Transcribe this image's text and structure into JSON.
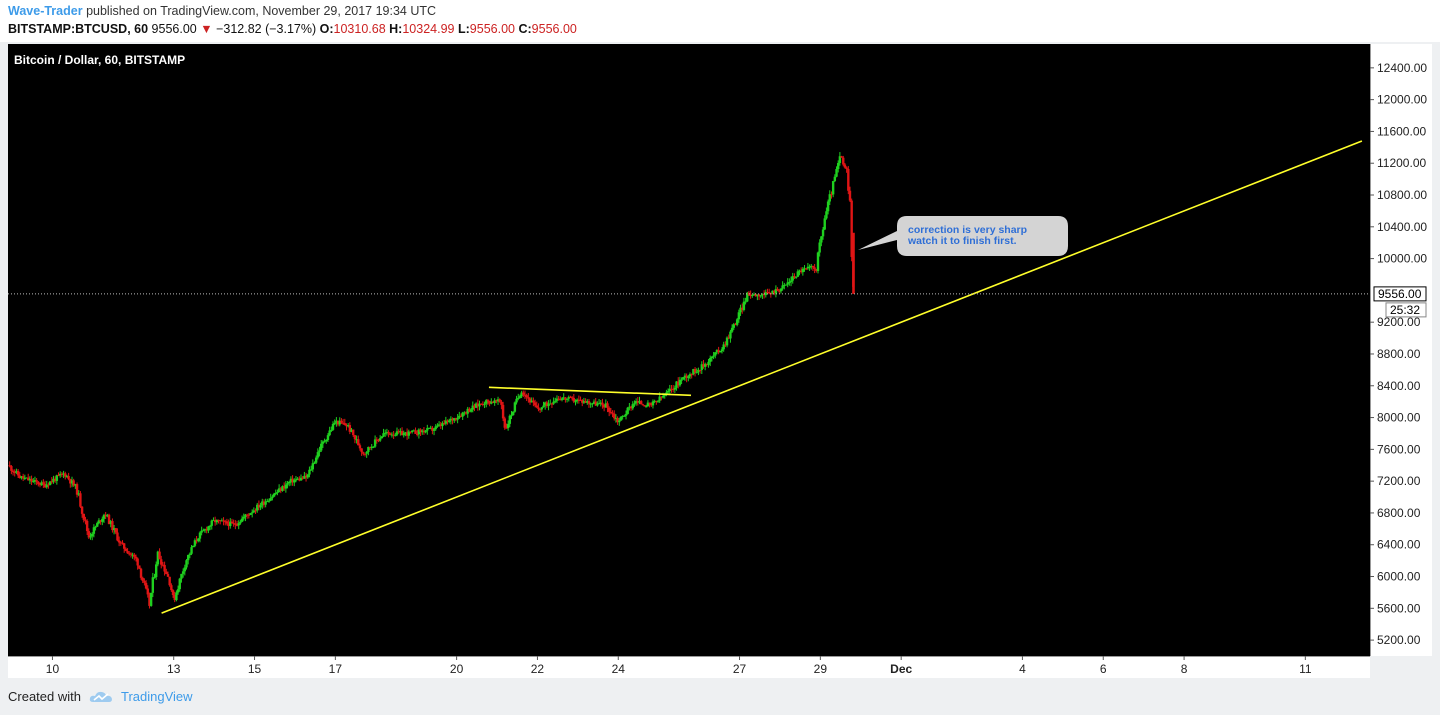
{
  "header": {
    "author": "Wave-Trader",
    "published_text": "published on TradingView.com, November 29, 2017 19:34 UTC",
    "symbol": "BITSTAMP:BTCUSD, 60",
    "last": "9556.00",
    "change_arrow": "▼",
    "change": "−312.82 (−3.17%)",
    "o_label": "O:",
    "o_value": "10310.68",
    "h_label": "H:",
    "h_value": "10324.99",
    "l_label": "L:",
    "l_value": "9556.00",
    "c_label": "C:",
    "c_value": "9556.00"
  },
  "footer": {
    "created_with": "Created with",
    "brand": "TradingView",
    "brand_icon": "tradingview-cloud-icon"
  },
  "colors": {
    "background": "#000000",
    "up_candle": "#1fd01f",
    "down_candle": "#e01515",
    "trendline": "#ffff2a",
    "price_line": "#bbbbbb",
    "note_fill": "#d4d4d4",
    "note_text": "#2f6fd6"
  },
  "chart_data": {
    "type": "candlestick",
    "title": "Bitcoin / Dollar, 60, BITSTAMP",
    "y_ticks": [
      "12400.00",
      "12000.00",
      "11600.00",
      "11200.00",
      "10800.00",
      "10400.00",
      "10000.00",
      "9200.00",
      "8800.00",
      "8400.00",
      "8000.00",
      "7600.00",
      "7200.00",
      "6800.00",
      "6400.00",
      "6000.00",
      "5600.00",
      "5200.00"
    ],
    "ylim": [
      5000,
      12700
    ],
    "x_ticks": [
      {
        "label": "10",
        "day": 10
      },
      {
        "label": "13",
        "day": 13
      },
      {
        "label": "15",
        "day": 15
      },
      {
        "label": "17",
        "day": 17
      },
      {
        "label": "20",
        "day": 20
      },
      {
        "label": "22",
        "day": 22
      },
      {
        "label": "24",
        "day": 24
      },
      {
        "label": "27",
        "day": 27
      },
      {
        "label": "29",
        "day": 29
      },
      {
        "label": "Dec",
        "day": 31
      },
      {
        "label": "4",
        "day": 34
      },
      {
        "label": "6",
        "day": 36
      },
      {
        "label": "8",
        "day": 38
      },
      {
        "label": "11",
        "day": 41
      }
    ],
    "xlim": [
      8.9,
      42.6
    ],
    "series": [
      {
        "name": "BTCUSD price path (approx.)",
        "points": [
          [
            8.9,
            7400
          ],
          [
            9.2,
            7250
          ],
          [
            9.8,
            7150
          ],
          [
            10.3,
            7300
          ],
          [
            10.6,
            7100
          ],
          [
            10.9,
            6500
          ],
          [
            11.3,
            6800
          ],
          [
            11.7,
            6400
          ],
          [
            12.1,
            6200
          ],
          [
            12.4,
            5650
          ],
          [
            12.6,
            6300
          ],
          [
            12.9,
            5950
          ],
          [
            13.0,
            5700
          ],
          [
            13.3,
            6200
          ],
          [
            13.6,
            6500
          ],
          [
            14.0,
            6700
          ],
          [
            14.5,
            6650
          ],
          [
            15.0,
            6850
          ],
          [
            15.4,
            7000
          ],
          [
            15.9,
            7200
          ],
          [
            16.3,
            7250
          ],
          [
            16.6,
            7600
          ],
          [
            17.0,
            7950
          ],
          [
            17.3,
            7900
          ],
          [
            17.7,
            7550
          ],
          [
            18.2,
            7800
          ],
          [
            18.8,
            7800
          ],
          [
            19.4,
            7850
          ],
          [
            19.8,
            7950
          ],
          [
            20.3,
            8100
          ],
          [
            20.7,
            8200
          ],
          [
            21.1,
            8200
          ],
          [
            21.2,
            7850
          ],
          [
            21.6,
            8350
          ],
          [
            22.0,
            8100
          ],
          [
            22.5,
            8250
          ],
          [
            23.2,
            8200
          ],
          [
            23.7,
            8150
          ],
          [
            24.0,
            7950
          ],
          [
            24.4,
            8200
          ],
          [
            24.8,
            8150
          ],
          [
            25.2,
            8300
          ],
          [
            25.6,
            8500
          ],
          [
            26.1,
            8650
          ],
          [
            26.6,
            8900
          ],
          [
            26.9,
            9200
          ],
          [
            27.2,
            9550
          ],
          [
            27.7,
            9550
          ],
          [
            28.1,
            9650
          ],
          [
            28.5,
            9850
          ],
          [
            28.9,
            9900
          ],
          [
            29.1,
            10500
          ],
          [
            29.3,
            10900
          ],
          [
            29.5,
            11300
          ],
          [
            29.65,
            11050
          ],
          [
            29.75,
            10600
          ],
          [
            29.82,
            9556
          ]
        ]
      }
    ],
    "last_price": "9556.00",
    "countdown": "25:32",
    "trendlines": [
      {
        "from": [
          12.7,
          5540
        ],
        "to": [
          42.4,
          11480
        ]
      },
      {
        "from": [
          20.8,
          8380
        ],
        "to": [
          25.8,
          8280
        ]
      }
    ],
    "annotation": {
      "lines": [
        "correction is very sharp",
        "watch it to finish first."
      ]
    }
  }
}
